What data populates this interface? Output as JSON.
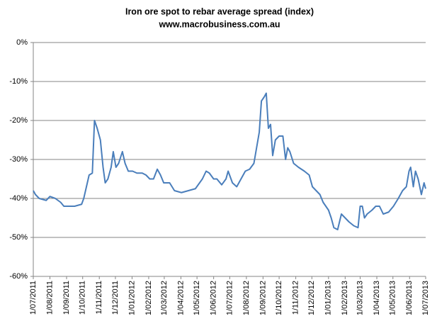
{
  "chart_data": {
    "type": "line",
    "title": "Iron ore spot to rebar average spread (index)",
    "subtitle": "www.macrobusiness.com.au",
    "color": "#4a7ebb",
    "grid": true,
    "x": [
      "1/07/2011",
      "5/07/2011",
      "12/07/2011",
      "25/07/2011",
      "1/08/2011",
      "11/08/2011",
      "21/08/2011",
      "27/08/2011",
      "3/09/2011",
      "16/09/2011",
      "29/09/2011",
      "3/10/2011",
      "8/10/2011",
      "13/10/2011",
      "19/10/2011",
      "23/10/2011",
      "28/10/2011",
      "3/11/2011",
      "8/11/2011",
      "12/11/2011",
      "17/11/2011",
      "23/11/2011",
      "27/11/2011",
      "2/12/2011",
      "7/12/2011",
      "14/12/2011",
      "19/12/2011",
      "25/12/2011",
      "2/01/2012",
      "10/01/2012",
      "20/01/2012",
      "27/01/2012",
      "3/02/2012",
      "10/02/2012",
      "17/02/2012",
      "23/02/2012",
      "29/02/2012",
      "11/03/2012",
      "20/03/2012",
      "2/04/2012",
      "15/04/2012",
      "28/04/2012",
      "11/05/2012",
      "18/05/2012",
      "24/05/2012",
      "1/06/2012",
      "7/06/2012",
      "16/06/2012",
      "24/06/2012",
      "28/06/2012",
      "6/07/2012",
      "14/07/2012",
      "22/07/2012",
      "30/07/2012",
      "7/08/2012",
      "15/08/2012",
      "20/08/2012",
      "25/08/2012",
      "29/08/2012",
      "3/09/2012",
      "7/09/2012",
      "11/09/2012",
      "15/09/2012",
      "19/09/2012",
      "24/09/2012",
      "1/10/2012",
      "8/10/2012",
      "13/10/2012",
      "17/10/2012",
      "21/10/2012",
      "28/10/2012",
      "6/11/2012",
      "17/11/2012",
      "26/11/2012",
      "2/12/2012",
      "9/12/2012",
      "16/12/2012",
      "22/12/2012",
      "1/01/2013",
      "6/01/2013",
      "11/01/2013",
      "18/01/2013",
      "25/01/2013",
      "1/02/2013",
      "8/02/2013",
      "17/02/2013",
      "25/02/2013",
      "1/03/2013",
      "5/03/2013",
      "9/03/2013",
      "14/03/2013",
      "23/03/2013",
      "30/03/2013",
      "6/04/2013",
      "13/04/2013",
      "23/04/2013",
      "2/05/2013",
      "11/05/2013",
      "19/05/2013",
      "26/05/2013",
      "31/05/2013",
      "3/06/2013",
      "8/06/2013",
      "12/06/2013",
      "17/06/2013",
      "23/06/2013",
      "28/06/2013",
      "1/07/2013"
    ],
    "values": [
      -38,
      -39,
      -40,
      -40.5,
      -39.5,
      -40,
      -41,
      -42,
      -42,
      -42,
      -41.5,
      -40,
      -37,
      -34,
      -33.5,
      -20,
      -22,
      -25,
      -32,
      -36,
      -35,
      -32,
      -28,
      -32,
      -31,
      -28,
      -31,
      -33,
      -33,
      -33.5,
      -33.5,
      -34,
      -35,
      -35,
      -32.5,
      -34,
      -36,
      -36,
      -38,
      -38.5,
      -38,
      -37.5,
      -35,
      -33,
      -33.5,
      -35,
      -35,
      -36.5,
      -35,
      -33,
      -36,
      -37,
      -35,
      -33,
      -32.5,
      -31,
      -27,
      -23,
      -15,
      -14,
      -13,
      -22,
      -21,
      -29,
      -25,
      -24,
      -24,
      -30,
      -27,
      -28,
      -31,
      -32,
      -33,
      -34,
      -37,
      -38,
      -39,
      -41,
      -43,
      -45,
      -47.5,
      -48,
      -44,
      -45,
      -46,
      -47,
      -47.5,
      -42,
      -42,
      -45,
      -44,
      -43,
      -42,
      -42,
      -44,
      -43.5,
      -42,
      -40,
      -38,
      -37,
      -33,
      -32,
      -37,
      -33,
      -35,
      -39,
      -36,
      -37.5
    ],
    "xlim": [
      "1/07/2011",
      "1/07/2013"
    ],
    "xticks": [
      "1/07/2011",
      "1/08/2011",
      "1/09/2011",
      "1/10/2011",
      "1/11/2011",
      "1/12/2011",
      "1/01/2012",
      "1/02/2012",
      "1/03/2012",
      "1/04/2012",
      "1/05/2012",
      "1/06/2012",
      "1/07/2012",
      "1/08/2012",
      "1/09/2012",
      "1/10/2012",
      "1/11/2012",
      "1/12/2012",
      "1/01/2013",
      "1/02/2013",
      "1/03/2013",
      "1/04/2013",
      "1/05/2013",
      "1/06/2013",
      "1/07/2013"
    ],
    "ylim": [
      -60,
      0
    ],
    "yticks": [
      {
        "value": 0,
        "label": "0%"
      },
      {
        "value": -10,
        "label": "-10%"
      },
      {
        "value": -20,
        "label": "-20%"
      },
      {
        "value": -30,
        "label": "-30%"
      },
      {
        "value": -40,
        "label": "-40%"
      },
      {
        "value": -50,
        "label": "-50%"
      },
      {
        "value": -60,
        "label": "-60%"
      }
    ]
  }
}
